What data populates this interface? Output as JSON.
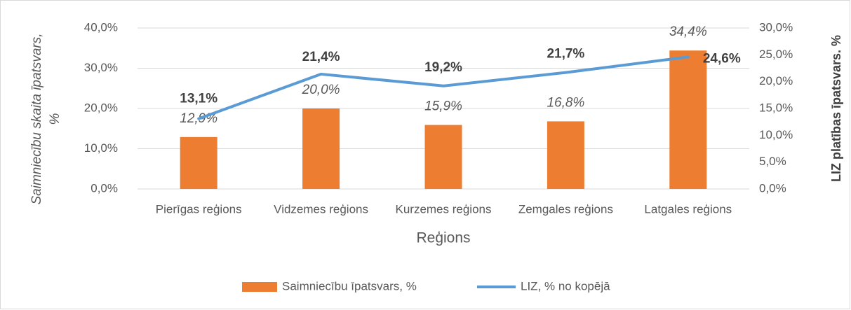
{
  "chart_data": {
    "type": "bar",
    "categories": [
      "Pierīgas reģions",
      "Vidzemes reģions",
      "Kurzemes reģions",
      "Zemgales reģions",
      "Latgales reģions"
    ],
    "series": [
      {
        "name": "Saimniecību īpatsvars, %",
        "type": "bar",
        "color": "#ed7d31",
        "values": [
          12.9,
          20.0,
          15.9,
          16.8,
          34.4
        ],
        "value_labels": [
          "12,9%",
          "20,0%",
          "15,9%",
          "16,8%",
          "34,4%"
        ]
      },
      {
        "name": "LIZ, % no kopējā",
        "type": "line",
        "axis": "y2",
        "color": "#5b9bd5",
        "values": [
          13.1,
          21.4,
          19.2,
          21.7,
          24.6
        ],
        "value_labels": [
          "13,1%",
          "21,4%",
          "19,2%",
          "21,7%",
          "24,6%"
        ]
      }
    ],
    "x_label": "Reģions",
    "y_label": "Saimniecību skaita īpatsvars, %",
    "y2_label": "LIZ platības īpatsvars. %",
    "ylim": [
      0,
      40
    ],
    "yticks": [
      {
        "value": 0,
        "label": "0,0%"
      },
      {
        "value": 10,
        "label": "10,0%"
      },
      {
        "value": 20,
        "label": "20,0%"
      },
      {
        "value": 30,
        "label": "30,0%"
      },
      {
        "value": 40,
        "label": "40,0%"
      }
    ],
    "y2lim": [
      0,
      30
    ],
    "y2ticks": [
      {
        "value": 0,
        "label": "0,0%"
      },
      {
        "value": 5,
        "label": "5,0%"
      },
      {
        "value": 10,
        "label": "10,0%"
      },
      {
        "value": 15,
        "label": "15,0%"
      },
      {
        "value": 20,
        "label": "20,0%"
      },
      {
        "value": 25,
        "label": "25,0%"
      },
      {
        "value": 30,
        "label": "30,0%"
      }
    ],
    "grid": true,
    "legend": "bottom"
  }
}
